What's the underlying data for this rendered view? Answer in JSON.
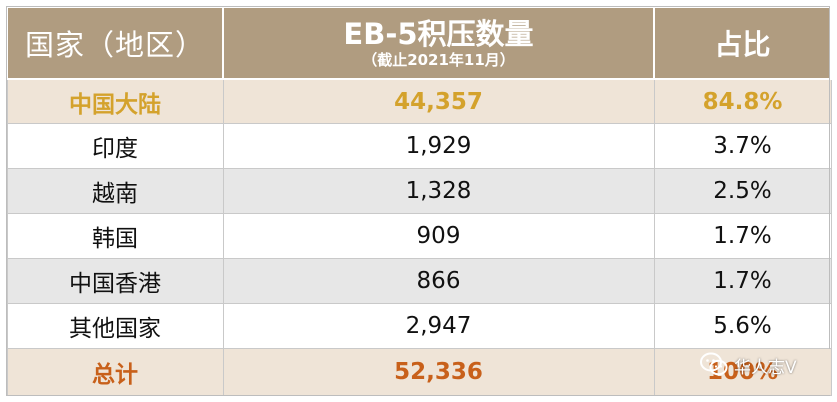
{
  "header": {
    "country_label": "国家（地区）",
    "backlog_title": "EB-5积压数量",
    "backlog_subtitle": "（截止2021年11月）",
    "ratio_label": "占比"
  },
  "rows": [
    {
      "country": "中国大陆",
      "count": "44,357",
      "ratio": "84.8%"
    },
    {
      "country": "印度",
      "count": "1,929",
      "ratio": "3.7%"
    },
    {
      "country": "越南",
      "count": "1,328",
      "ratio": "2.5%"
    },
    {
      "country": "韩国",
      "count": "909",
      "ratio": "1.7%"
    },
    {
      "country": "中国香港",
      "count": "866",
      "ratio": "1.7%"
    },
    {
      "country": "其他国家",
      "count": "2,947",
      "ratio": "5.6%"
    }
  ],
  "total": {
    "label": "总计",
    "count": "52,336",
    "ratio": "100%"
  },
  "watermark": {
    "text": "华人志V",
    "icon": "wechat-icon"
  },
  "colors": {
    "header_bg": "#b09c80",
    "highlight_bg": "#efe4d7",
    "highlight_text": "#d4a22c",
    "total_text": "#c8601a",
    "stripe_bg": "#e7e7e7"
  }
}
